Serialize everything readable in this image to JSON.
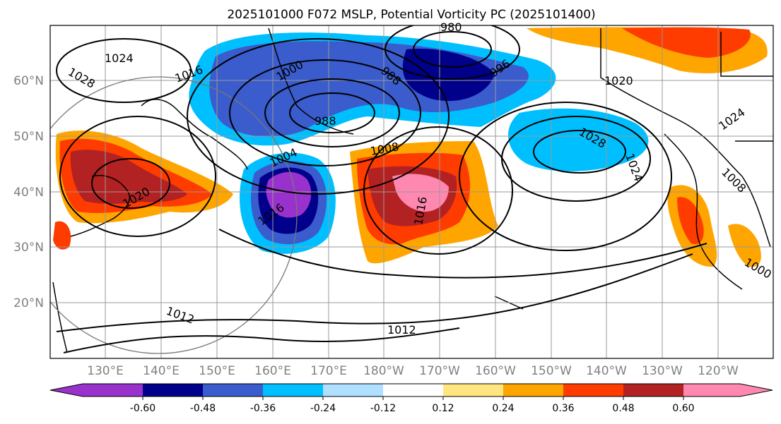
{
  "title": "2025101000 F072 MSLP, Potential Vorticity PC (2025101400)",
  "lat_labels": [
    "60°N",
    "50°N",
    "40°N",
    "30°N",
    "20°N"
  ],
  "lon_labels": [
    "130°E",
    "140°E",
    "150°E",
    "160°E",
    "170°E",
    "180°W",
    "170°W",
    "160°W",
    "150°W",
    "140°W",
    "130°W",
    "120°W"
  ],
  "colorbar": {
    "colors": [
      "#9932cc",
      "#00008b",
      "#3a5ccc",
      "#00bfff",
      "#b0e0ff",
      "#ffffff",
      "#ffffff",
      "#ffe680",
      "#ffa500",
      "#ff3c00",
      "#b22222",
      "#ff88b0"
    ],
    "tick_labels": [
      "-0.60",
      "-0.48",
      "-0.36",
      "-0.24",
      "-0.12",
      "0.12",
      "0.24",
      "0.36",
      "0.48",
      "0.60"
    ]
  },
  "isobar_labels": [
    "1024",
    "1028",
    "1016",
    "1000",
    "980",
    "988",
    "996",
    "1020",
    "1008",
    "1004",
    "1016",
    "1012",
    "1012",
    "988",
    "1016",
    "1028",
    "1024",
    "1024",
    "1008",
    "1020",
    "1000"
  ],
  "colors": {
    "grid": "#999999",
    "contour": "#000000"
  }
}
